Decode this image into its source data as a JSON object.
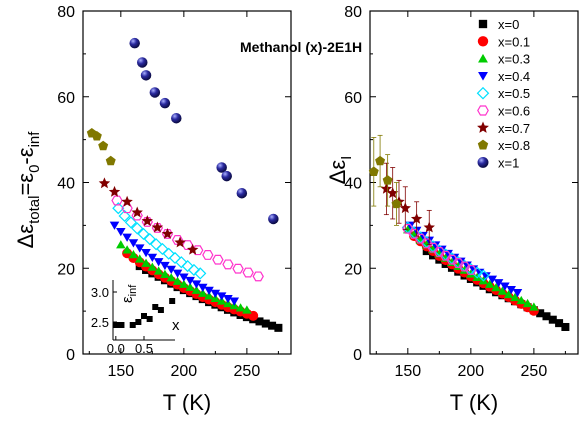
{
  "figure_title": "Methanol (x)-2E1H",
  "legend": [
    {
      "label": "x=0",
      "color": "#000000",
      "marker": "square"
    },
    {
      "label": "x=0.1",
      "color": "#ff0000",
      "marker": "circle"
    },
    {
      "label": "x=0.3",
      "color": "#00cc00",
      "marker": "triangle-up"
    },
    {
      "label": "x=0.4",
      "color": "#0000ff",
      "marker": "triangle-down"
    },
    {
      "label": "x=0.5",
      "color": "#00e0ff",
      "marker": "diamond-open"
    },
    {
      "label": "x=0.6",
      "color": "#ff33cc",
      "marker": "hexagon-open"
    },
    {
      "label": "x=0.7",
      "color": "#800000",
      "marker": "star"
    },
    {
      "label": "x=0.8",
      "color": "#807800",
      "marker": "pentagon"
    },
    {
      "label": "x=1",
      "color": "#1a1a80",
      "marker": "sphere"
    }
  ],
  "chart_data": [
    {
      "type": "scatter",
      "panel": "left",
      "xlabel_main": "T (K)",
      "ylabel_parts": {
        "p1": "Δε",
        "p2": "total",
        "p3": "=ε",
        "p4": "0",
        "p5": "-ε",
        "p6": "inf"
      },
      "xlim": [
        120,
        285
      ],
      "ylim": [
        0,
        80
      ],
      "xticks": [
        "150",
        "200",
        "250"
      ],
      "yticks": [
        "0",
        "20",
        "40",
        "60",
        "80"
      ],
      "series": [
        {
          "name": "x=0",
          "x": [
            165,
            170,
            175,
            180,
            185,
            190,
            195,
            200,
            205,
            210,
            215,
            220,
            225,
            230,
            235,
            240,
            245,
            250,
            255,
            260,
            265,
            270,
            275
          ],
          "y": [
            20.5,
            19.6,
            18.8,
            18.0,
            17.2,
            16.4,
            15.6,
            14.9,
            14.2,
            13.5,
            12.8,
            12.1,
            11.5,
            10.9,
            10.3,
            9.7,
            9.1,
            8.6,
            8.1,
            7.6,
            7.1,
            6.6,
            6.1
          ]
        },
        {
          "name": "x=0.1",
          "x": [
            155,
            160,
            165,
            170,
            175,
            180,
            185,
            190,
            195,
            200,
            205,
            210,
            215,
            220,
            225,
            230,
            235,
            240,
            245,
            250,
            255
          ],
          "y": [
            23.5,
            22.4,
            21.4,
            20.4,
            19.5,
            18.6,
            17.8,
            17.0,
            16.2,
            15.4,
            14.7,
            14.0,
            13.3,
            12.7,
            12.1,
            11.5,
            10.9,
            10.4,
            9.9,
            9.4,
            8.9
          ]
        },
        {
          "name": "x=0.3",
          "x": [
            150,
            155,
            160,
            165,
            170,
            175,
            180,
            185,
            190,
            195,
            200,
            205,
            210,
            215,
            220,
            225,
            230,
            235,
            240,
            245,
            250
          ],
          "y": [
            25.5,
            24.3,
            23.2,
            22.2,
            21.2,
            20.3,
            19.4,
            18.6,
            17.8,
            17.0,
            16.3,
            15.6,
            14.9,
            14.2,
            13.6,
            13.0,
            12.4,
            11.8,
            11.3,
            10.8,
            10.3
          ]
        },
        {
          "name": "x=0.4",
          "x": [
            145,
            150,
            155,
            160,
            165,
            170,
            175,
            180,
            185,
            190,
            195,
            200,
            205,
            210,
            215,
            220,
            225,
            230,
            235,
            240
          ],
          "y": [
            30.0,
            28.5,
            27.2,
            25.9,
            24.7,
            23.6,
            22.5,
            21.5,
            20.6,
            19.7,
            18.8,
            17.9,
            17.1,
            16.3,
            15.5,
            14.8,
            14.1,
            13.5,
            12.9,
            12.3
          ]
        },
        {
          "name": "x=0.5",
          "x": [
            148,
            153,
            158,
            163,
            168,
            173,
            178,
            183,
            188,
            193,
            198,
            203,
            208,
            213
          ],
          "y": [
            34.0,
            32.2,
            30.7,
            29.3,
            28.0,
            26.8,
            25.6,
            24.5,
            23.4,
            22.4,
            21.4,
            20.5,
            19.6,
            18.8
          ]
        },
        {
          "name": "x=0.6",
          "x": [
            147,
            155,
            163,
            171,
            179,
            187,
            195,
            203,
            211,
            219,
            227,
            235,
            243,
            251,
            259
          ],
          "y": [
            35.8,
            34.0,
            32.3,
            30.8,
            29.4,
            28.0,
            26.6,
            25.4,
            24.2,
            23.1,
            22.0,
            20.9,
            19.9,
            19.0,
            18.1
          ]
        },
        {
          "name": "x=0.7",
          "x": [
            137,
            145,
            155,
            163,
            171,
            179,
            187,
            197,
            207
          ],
          "y": [
            39.8,
            37.8,
            35.5,
            33.0,
            31.0,
            29.5,
            28.0,
            26.0,
            24.3
          ]
        },
        {
          "name": "x=0.8",
          "x": [
            127,
            131,
            136,
            142
          ],
          "y": [
            51.5,
            50.8,
            48.5,
            45.0
          ]
        },
        {
          "name": "x=1",
          "x": [
            161,
            167,
            170,
            177,
            185,
            194,
            230,
            234,
            246,
            271
          ],
          "y": [
            72.5,
            68.0,
            65.0,
            61.0,
            58.5,
            55.0,
            43.5,
            41.5,
            37.5,
            31.5
          ]
        }
      ],
      "inset": {
        "xlabel": "x",
        "ylabel_parts": {
          "p1": "ε",
          "p2": "inf"
        },
        "xticks": [
          "0.0",
          "0.5"
        ],
        "yticks": [
          "2.5",
          "3.0"
        ],
        "xlim": [
          -0.05,
          1.05
        ],
        "ylim": [
          2.2,
          3.2
        ],
        "x": [
          0.0,
          0.1,
          0.3,
          0.4,
          0.5,
          0.6,
          0.7,
          0.8,
          1.0
        ],
        "y": [
          2.45,
          2.45,
          2.45,
          2.5,
          2.6,
          2.55,
          2.75,
          2.7,
          2.85
        ]
      }
    },
    {
      "type": "scatter",
      "panel": "right",
      "xlabel_main": "T (K)",
      "ylabel_parts": {
        "p1": "Δε",
        "p2": "I"
      },
      "xlim": [
        120,
        285
      ],
      "ylim": [
        0,
        80
      ],
      "xticks": [
        "150",
        "200",
        "250"
      ],
      "yticks": [
        "0",
        "20",
        "40",
        "60",
        "80"
      ],
      "series": [
        {
          "name": "x=0",
          "x": [
            165,
            170,
            175,
            180,
            185,
            190,
            195,
            200,
            205,
            210,
            215,
            220,
            225,
            230,
            235,
            240,
            245,
            250,
            255,
            260,
            265,
            270,
            275
          ],
          "y": [
            24.0,
            23.0,
            22.0,
            21.0,
            20.1,
            19.2,
            18.3,
            17.5,
            16.7,
            15.9,
            15.1,
            14.4,
            13.7,
            13.0,
            12.3,
            11.6,
            10.9,
            10.2,
            9.5,
            8.8,
            8.0,
            7.2,
            6.3
          ]
        },
        {
          "name": "x=0.1",
          "x": [
            155,
            160,
            165,
            170,
            175,
            180,
            185,
            190,
            195,
            200,
            205,
            210,
            215,
            220,
            225,
            230,
            235,
            240,
            245,
            250
          ],
          "y": [
            27.5,
            26.3,
            25.1,
            24.0,
            22.9,
            21.9,
            20.9,
            19.9,
            19.0,
            18.1,
            17.3,
            16.5,
            15.7,
            14.9,
            14.1,
            13.3,
            12.5,
            11.7,
            10.9,
            10.1
          ]
        },
        {
          "name": "x=0.3",
          "x": [
            150,
            155,
            160,
            165,
            170,
            175,
            180,
            185,
            190,
            195,
            200,
            205,
            210,
            215,
            220,
            225,
            230,
            235,
            240,
            245,
            250
          ],
          "y": [
            29.0,
            27.8,
            26.6,
            25.5,
            24.4,
            23.4,
            22.4,
            21.4,
            20.5,
            19.6,
            18.7,
            17.9,
            17.1,
            16.3,
            15.5,
            14.7,
            13.9,
            13.2,
            12.5,
            11.8,
            11.0
          ]
        },
        {
          "name": "x=0.4",
          "x": [
            152,
            157,
            162,
            167,
            172,
            177,
            182,
            187,
            192,
            197,
            202,
            207,
            212,
            217,
            222,
            227,
            232,
            237
          ],
          "y": [
            30.0,
            28.8,
            27.6,
            26.5,
            25.4,
            24.4,
            23.4,
            22.5,
            21.6,
            20.7,
            19.8,
            19.0,
            18.2,
            17.4,
            16.6,
            15.8,
            15.0,
            14.3
          ]
        },
        {
          "name": "x=0.5",
          "x": [
            150,
            155,
            160,
            165,
            170,
            175,
            180,
            185,
            190,
            195,
            200,
            205,
            210
          ],
          "y": [
            29.5,
            28.3,
            27.2,
            26.1,
            25.1,
            24.1,
            23.2,
            22.3,
            21.4,
            20.6,
            19.8,
            19.0,
            18.3
          ]
        },
        {
          "name": "x=0.6",
          "x": [
            150,
            155,
            160,
            165,
            170,
            175,
            180,
            185,
            190,
            195,
            200
          ],
          "y": [
            29.2,
            28.0,
            26.9,
            25.8,
            24.8,
            23.8,
            22.9,
            22.0,
            21.2,
            20.4,
            19.6
          ]
        },
        {
          "name": "x=0.7",
          "x": [
            133,
            138,
            143,
            148,
            157,
            167
          ],
          "y": [
            38.5,
            37.5,
            35.5,
            34.0,
            31.5,
            29.5
          ],
          "err": [
            6,
            6,
            5,
            5,
            4,
            4
          ]
        },
        {
          "name": "x=0.8",
          "x": [
            123,
            128,
            134,
            141
          ],
          "y": [
            42.5,
            45.0,
            40.5,
            35.0
          ],
          "err": [
            8,
            6,
            6,
            5
          ]
        }
      ]
    }
  ]
}
